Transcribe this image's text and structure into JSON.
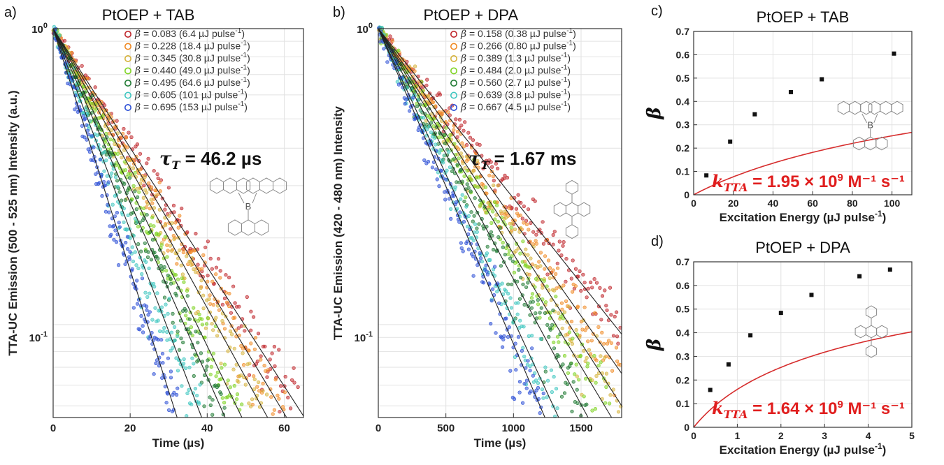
{
  "panel_labels": [
    "a)",
    "b)",
    "c)",
    "d)"
  ],
  "chart_data": [
    {
      "type": "scatter",
      "title": "PtOEP + TAB",
      "xlabel": "Time (µs)",
      "ylabel": "TTA-UC Emission (500 - 525 nm) Intensity    (a.u.)",
      "xlim": [
        0,
        65
      ],
      "ylim": [
        0.055,
        1
      ],
      "yscale": "log",
      "xticks": [
        "0",
        "20",
        "40",
        "60"
      ],
      "yticks": [
        {
          "base": "10",
          "exp": "0"
        },
        {
          "base": "10",
          "exp": "-1"
        }
      ],
      "grid": true,
      "legend_position": "top-right",
      "annotation": {
        "symbol": "τ",
        "sub": "T",
        "text": " = 46.2 µs"
      },
      "molecule_label": "B",
      "series": [
        {
          "beta": "0.083",
          "energy": "(6.4 µJ pulse",
          "sup": "-1",
          "close": ")",
          "color": "#c0262b",
          "tau_fit": 22.5
        },
        {
          "beta": "0.228",
          "energy": "(18.4 µJ pulse",
          "sup": "-1",
          "close": ")",
          "color": "#f08a24",
          "tau_fit": 20.9
        },
        {
          "beta": "0.345",
          "energy": "(30.8 µJ pulse",
          "sup": "-1",
          "close": ")",
          "color": "#d6b33a",
          "tau_fit": 19.2
        },
        {
          "beta": "0.440",
          "energy": "(49.0 µJ pulse",
          "sup": "-1",
          "close": ")",
          "color": "#7ed321",
          "tau_fit": 16.9
        },
        {
          "beta": "0.495",
          "energy": "(64.6 µJ pulse",
          "sup": "-1",
          "close": ")",
          "color": "#1f7a33",
          "tau_fit": 15.4
        },
        {
          "beta": "0.605",
          "energy": "(101 µJ pulse",
          "sup": "-1",
          "close": ")",
          "color": "#3ec6c0",
          "tau_fit": 13.3
        },
        {
          "beta": "0.695",
          "energy": "(153 µJ pulse",
          "sup": "-1",
          "close": ")",
          "color": "#2c4fd6",
          "tau_fit": 11.1
        }
      ]
    },
    {
      "type": "scatter",
      "title": "PtOEP + DPA",
      "xlabel": "Time (µs)",
      "ylabel": "TTA-UC Emission (420 - 480 nm) Intensity",
      "xlim": [
        0,
        1800
      ],
      "ylim": [
        0.055,
        1
      ],
      "yscale": "log",
      "xticks": [
        "0",
        "500",
        "1000",
        "1500"
      ],
      "yticks": [
        {
          "base": "10",
          "exp": "0"
        },
        {
          "base": "10",
          "exp": "-1"
        }
      ],
      "grid": true,
      "legend_position": "top-right",
      "annotation": {
        "symbol": "τ",
        "sub": "T",
        "text": " = 1.67 ms"
      },
      "series": [
        {
          "beta": "0.158",
          "energy": "(0.38 µJ pulse",
          "sup": "-1",
          "close": ")",
          "color": "#c0262b",
          "tau_fit": 790
        },
        {
          "beta": "0.266",
          "energy": "(0.80 µJ pulse",
          "sup": "-1",
          "close": ")",
          "color": "#f08a24",
          "tau_fit": 700
        },
        {
          "beta": "0.389",
          "energy": "(1.3 µJ pulse",
          "sup": "-1",
          "close": ")",
          "color": "#d6b33a",
          "tau_fit": 640
        },
        {
          "beta": "0.484",
          "energy": "(2.0 µJ pulse",
          "sup": "-1",
          "close": ")",
          "color": "#7ed321",
          "tau_fit": 595
        },
        {
          "beta": "0.560",
          "energy": "(2.7 µJ pulse",
          "sup": "-1",
          "close": ")",
          "color": "#1f7a33",
          "tau_fit": 535
        },
        {
          "beta": "0.639",
          "energy": "(3.8 µJ pulse",
          "sup": "-1",
          "close": ")",
          "color": "#3ec6c0",
          "tau_fit": 460
        },
        {
          "beta": "0.667",
          "energy": "(4.5 µJ pulse",
          "sup": "-1",
          "close": ")",
          "color": "#2c4fd6",
          "tau_fit": 425
        }
      ]
    },
    {
      "type": "scatter",
      "title": "PtOEP + TAB",
      "xlabel": "Excitation Energy (µJ pulse",
      "xlabel_sup": "-1",
      "xlabel_close": ")",
      "ylabel": "β",
      "xlim": [
        0,
        110
      ],
      "ylim": [
        0,
        0.7
      ],
      "xticks": [
        0,
        20,
        40,
        60,
        80,
        100
      ],
      "yticks": [
        0,
        0.1,
        0.2,
        0.3,
        0.4,
        0.5,
        0.6,
        0.7
      ],
      "grid": true,
      "points": [
        {
          "x": 6.4,
          "y": 0.083
        },
        {
          "x": 18.4,
          "y": 0.228
        },
        {
          "x": 30.8,
          "y": 0.345
        },
        {
          "x": 49.0,
          "y": 0.44
        },
        {
          "x": 64.6,
          "y": 0.495
        },
        {
          "x": 101,
          "y": 0.605
        }
      ],
      "fit_color": "#d62d2d",
      "fit_a": 0.00905,
      "annotation": {
        "symbol": "k",
        "sub": "TTA",
        "text": " = 1.95 × 10",
        "sup": "9",
        "units": " M⁻¹ s⁻¹"
      },
      "molecule_label": "B"
    },
    {
      "type": "scatter",
      "title": "PtOEP + DPA",
      "xlabel": "Excitation Energy (µJ pulse",
      "xlabel_sup": "-1",
      "xlabel_close": ")",
      "ylabel": "β",
      "xlim": [
        0,
        5
      ],
      "ylim": [
        0,
        0.7
      ],
      "xticks": [
        0,
        1,
        2,
        3,
        4,
        5
      ],
      "yticks": [
        0,
        0.1,
        0.2,
        0.3,
        0.4,
        0.5,
        0.6,
        0.7
      ],
      "grid": true,
      "points": [
        {
          "x": 0.38,
          "y": 0.158
        },
        {
          "x": 0.8,
          "y": 0.266
        },
        {
          "x": 1.3,
          "y": 0.389
        },
        {
          "x": 2.0,
          "y": 0.484
        },
        {
          "x": 2.7,
          "y": 0.56
        },
        {
          "x": 3.8,
          "y": 0.639
        },
        {
          "x": 4.5,
          "y": 0.667
        }
      ],
      "fit_color": "#d62d2d",
      "fit_a": 0.455,
      "annotation": {
        "symbol": "k",
        "sub": "TTA",
        "text": " = 1.64 × 10",
        "sup": "9",
        "units": " M⁻¹ s⁻¹"
      }
    }
  ]
}
